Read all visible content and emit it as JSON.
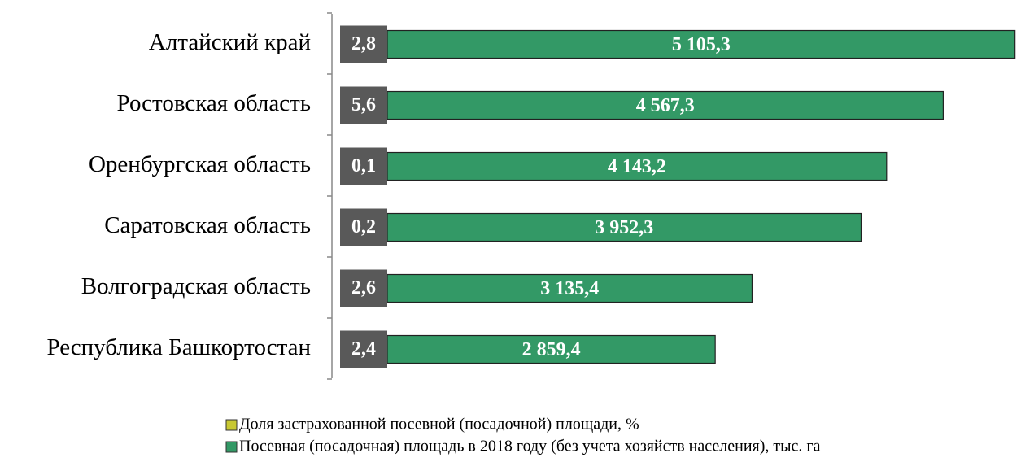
{
  "chart_data": {
    "type": "bar",
    "orientation": "horizontal",
    "categories": [
      "Алтайский край",
      "Ростовская область",
      "Оренбургская область",
      "Саратовская область",
      "Волгоградская область",
      "Республика Башкортостан"
    ],
    "series": [
      {
        "name": "Доля застрахованной посевной (посадочной) площади, %",
        "color": "#595959",
        "legend_color": "#c8c832",
        "values": [
          2.8,
          5.6,
          0.1,
          0.2,
          2.6,
          2.4
        ],
        "value_labels": [
          "2,8",
          "5,6",
          "0,1",
          "0,2",
          "2,6",
          "2,4"
        ]
      },
      {
        "name": "Посевная (посадочная) площадь в 2018 году (без учета хозяйств населения), тыс. га",
        "color": "#339966",
        "values": [
          5105.3,
          4567.3,
          4143.2,
          3952.3,
          3135.4,
          2859.4
        ],
        "value_labels": [
          "5 105,3",
          "4 567,3",
          "4 143,2",
          "3 952,3",
          "3 135,4",
          "2 859,4"
        ]
      }
    ],
    "xlim": [
      0,
      5150
    ]
  }
}
